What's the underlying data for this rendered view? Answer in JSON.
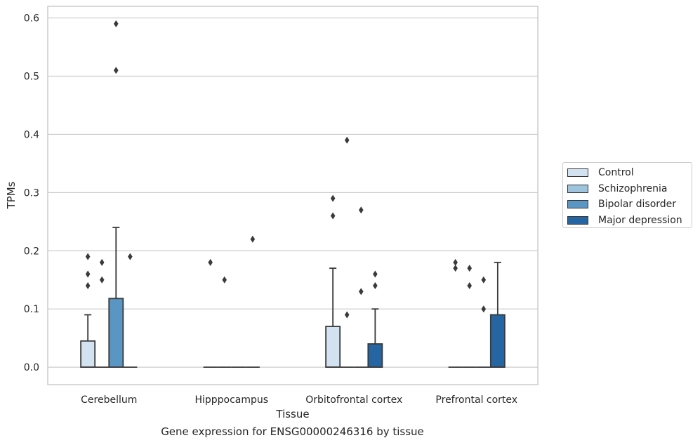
{
  "chart_data": {
    "type": "box",
    "title": "",
    "caption": "Gene expression for ENSG00000246316 by tissue",
    "xlabel": "Tissue",
    "ylabel": "TPMs",
    "ylim": [
      -0.03,
      0.62
    ],
    "yticks": [
      "0.0",
      "0.1",
      "0.2",
      "0.3",
      "0.4",
      "0.5",
      "0.6"
    ],
    "grid": "horizontal",
    "legend_position": "right",
    "categories": [
      "Cerebellum",
      "Hipppocampus",
      "Orbitofrontal cortex",
      "Prefrontal cortex"
    ],
    "series": [
      {
        "name": "Control",
        "color": "#d2e2f0",
        "boxes": [
          {
            "q1": 0.0,
            "median": 0.0,
            "q3": 0.045,
            "whisker_low": 0.0,
            "whisker_high": 0.09,
            "outliers": [
              0.14,
              0.16,
              0.19
            ]
          },
          {
            "q1": 0.0,
            "median": 0.0,
            "q3": 0.0,
            "whisker_low": 0.0,
            "whisker_high": 0.0,
            "outliers": [
              0.18
            ]
          },
          {
            "q1": 0.0,
            "median": 0.0,
            "q3": 0.07,
            "whisker_low": 0.0,
            "whisker_high": 0.17,
            "outliers": [
              0.26,
              0.29
            ]
          },
          {
            "q1": 0.0,
            "median": 0.0,
            "q3": 0.0,
            "whisker_low": 0.0,
            "whisker_high": 0.0,
            "outliers": [
              0.17,
              0.18
            ]
          }
        ]
      },
      {
        "name": "Schizophrenia",
        "color": "#9dc3dd",
        "boxes": [
          {
            "q1": 0.0,
            "median": 0.0,
            "q3": 0.0,
            "whisker_low": 0.0,
            "whisker_high": 0.0,
            "outliers": [
              0.15,
              0.18
            ]
          },
          {
            "q1": 0.0,
            "median": 0.0,
            "q3": 0.0,
            "whisker_low": 0.0,
            "whisker_high": 0.0,
            "outliers": [
              0.15
            ]
          },
          {
            "q1": 0.0,
            "median": 0.0,
            "q3": 0.0,
            "whisker_low": 0.0,
            "whisker_high": 0.0,
            "outliers": [
              0.09,
              0.39
            ]
          },
          {
            "q1": 0.0,
            "median": 0.0,
            "q3": 0.0,
            "whisker_low": 0.0,
            "whisker_high": 0.0,
            "outliers": [
              0.14,
              0.17
            ]
          }
        ]
      },
      {
        "name": "Bipolar disorder",
        "color": "#5a96c3",
        "boxes": [
          {
            "q1": 0.0,
            "median": 0.0,
            "q3": 0.118,
            "whisker_low": 0.0,
            "whisker_high": 0.24,
            "outliers": [
              0.51,
              0.59
            ]
          },
          {
            "q1": 0.0,
            "median": 0.0,
            "q3": 0.0,
            "whisker_low": 0.0,
            "whisker_high": 0.0,
            "outliers": []
          },
          {
            "q1": 0.0,
            "median": 0.0,
            "q3": 0.0,
            "whisker_low": 0.0,
            "whisker_high": 0.0,
            "outliers": [
              0.13,
              0.27
            ]
          },
          {
            "q1": 0.0,
            "median": 0.0,
            "q3": 0.0,
            "whisker_low": 0.0,
            "whisker_high": 0.0,
            "outliers": [
              0.1,
              0.15
            ]
          }
        ]
      },
      {
        "name": "Major depression",
        "color": "#2565a1",
        "boxes": [
          {
            "q1": 0.0,
            "median": 0.0,
            "q3": 0.0,
            "whisker_low": 0.0,
            "whisker_high": 0.0,
            "outliers": [
              0.19
            ]
          },
          {
            "q1": 0.0,
            "median": 0.0,
            "q3": 0.0,
            "whisker_low": 0.0,
            "whisker_high": 0.0,
            "outliers": [
              0.22
            ]
          },
          {
            "q1": 0.0,
            "median": 0.0,
            "q3": 0.04,
            "whisker_low": 0.0,
            "whisker_high": 0.1,
            "outliers": [
              0.14,
              0.16
            ]
          },
          {
            "q1": 0.0,
            "median": 0.0,
            "q3": 0.09,
            "whisker_low": 0.0,
            "whisker_high": 0.18,
            "outliers": []
          }
        ]
      }
    ]
  }
}
